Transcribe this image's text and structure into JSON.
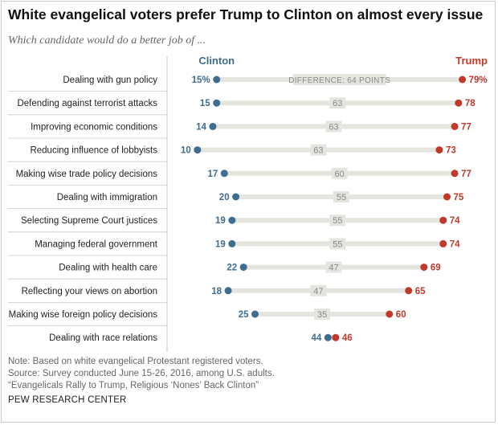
{
  "title": "White evangelical voters prefer Trump to Clinton on almost every issue",
  "subtitle": "Which candidate would do a better job of ...",
  "notes": [
    "Note: Based on white evangelical Protestant registered voters.",
    "Source: Survey conducted June 15-26, 2016, among U.S. adults.",
    "“Evangelicals Rally to Trump, Religious ‘Nones’ Back Clinton”"
  ],
  "source_org": "PEW RESEARCH CENTER",
  "colors": {
    "clinton": "#3e6d8f",
    "trump": "#c0392b",
    "bar": "#e5e5e0",
    "divider": "#c9c9c9",
    "diff_text": "#888888"
  },
  "chart_data": {
    "type": "dot",
    "xlim": [
      0,
      100
    ],
    "series": [
      {
        "name": "Clinton",
        "color": "#3e6d8f"
      },
      {
        "name": "Trump",
        "color": "#c0392b"
      }
    ],
    "rows": [
      {
        "label": "Dealing with gun policy",
        "clinton": 15,
        "trump": 79,
        "diff": 64,
        "clinton_label": "15%",
        "trump_label": "79%",
        "diff_label": "DIFFERENCE: 64 POINTS"
      },
      {
        "label": "Defending against terrorist attacks",
        "clinton": 15,
        "trump": 78,
        "diff": 63,
        "clinton_label": "15",
        "trump_label": "78",
        "diff_label": "63"
      },
      {
        "label": "Improving economic conditions",
        "clinton": 14,
        "trump": 77,
        "diff": 63,
        "clinton_label": "14",
        "trump_label": "77",
        "diff_label": "63"
      },
      {
        "label": "Reducing influence of lobbyists",
        "clinton": 10,
        "trump": 73,
        "diff": 63,
        "clinton_label": "10",
        "trump_label": "73",
        "diff_label": "63"
      },
      {
        "label": "Making wise trade policy decisions",
        "clinton": 17,
        "trump": 77,
        "diff": 60,
        "clinton_label": "17",
        "trump_label": "77",
        "diff_label": "60"
      },
      {
        "label": "Dealing with immigration",
        "clinton": 20,
        "trump": 75,
        "diff": 55,
        "clinton_label": "20",
        "trump_label": "75",
        "diff_label": "55"
      },
      {
        "label": "Selecting Supreme Court justices",
        "clinton": 19,
        "trump": 74,
        "diff": 55,
        "clinton_label": "19",
        "trump_label": "74",
        "diff_label": "55"
      },
      {
        "label": "Managing federal government",
        "clinton": 19,
        "trump": 74,
        "diff": 55,
        "clinton_label": "19",
        "trump_label": "74",
        "diff_label": "55"
      },
      {
        "label": "Dealing with health care",
        "clinton": 22,
        "trump": 69,
        "diff": 47,
        "clinton_label": "22",
        "trump_label": "69",
        "diff_label": "47"
      },
      {
        "label": "Reflecting your views on abortion",
        "clinton": 18,
        "trump": 65,
        "diff": 47,
        "clinton_label": "18",
        "trump_label": "65",
        "diff_label": "47"
      },
      {
        "label": "Making wise foreign policy decisions",
        "clinton": 25,
        "trump": 60,
        "diff": 35,
        "clinton_label": "25",
        "trump_label": "60",
        "diff_label": "35"
      },
      {
        "label": "Dealing with race relations",
        "clinton": 44,
        "trump": 46,
        "diff": 2,
        "clinton_label": "44",
        "trump_label": "46",
        "diff_label": ""
      }
    ]
  }
}
